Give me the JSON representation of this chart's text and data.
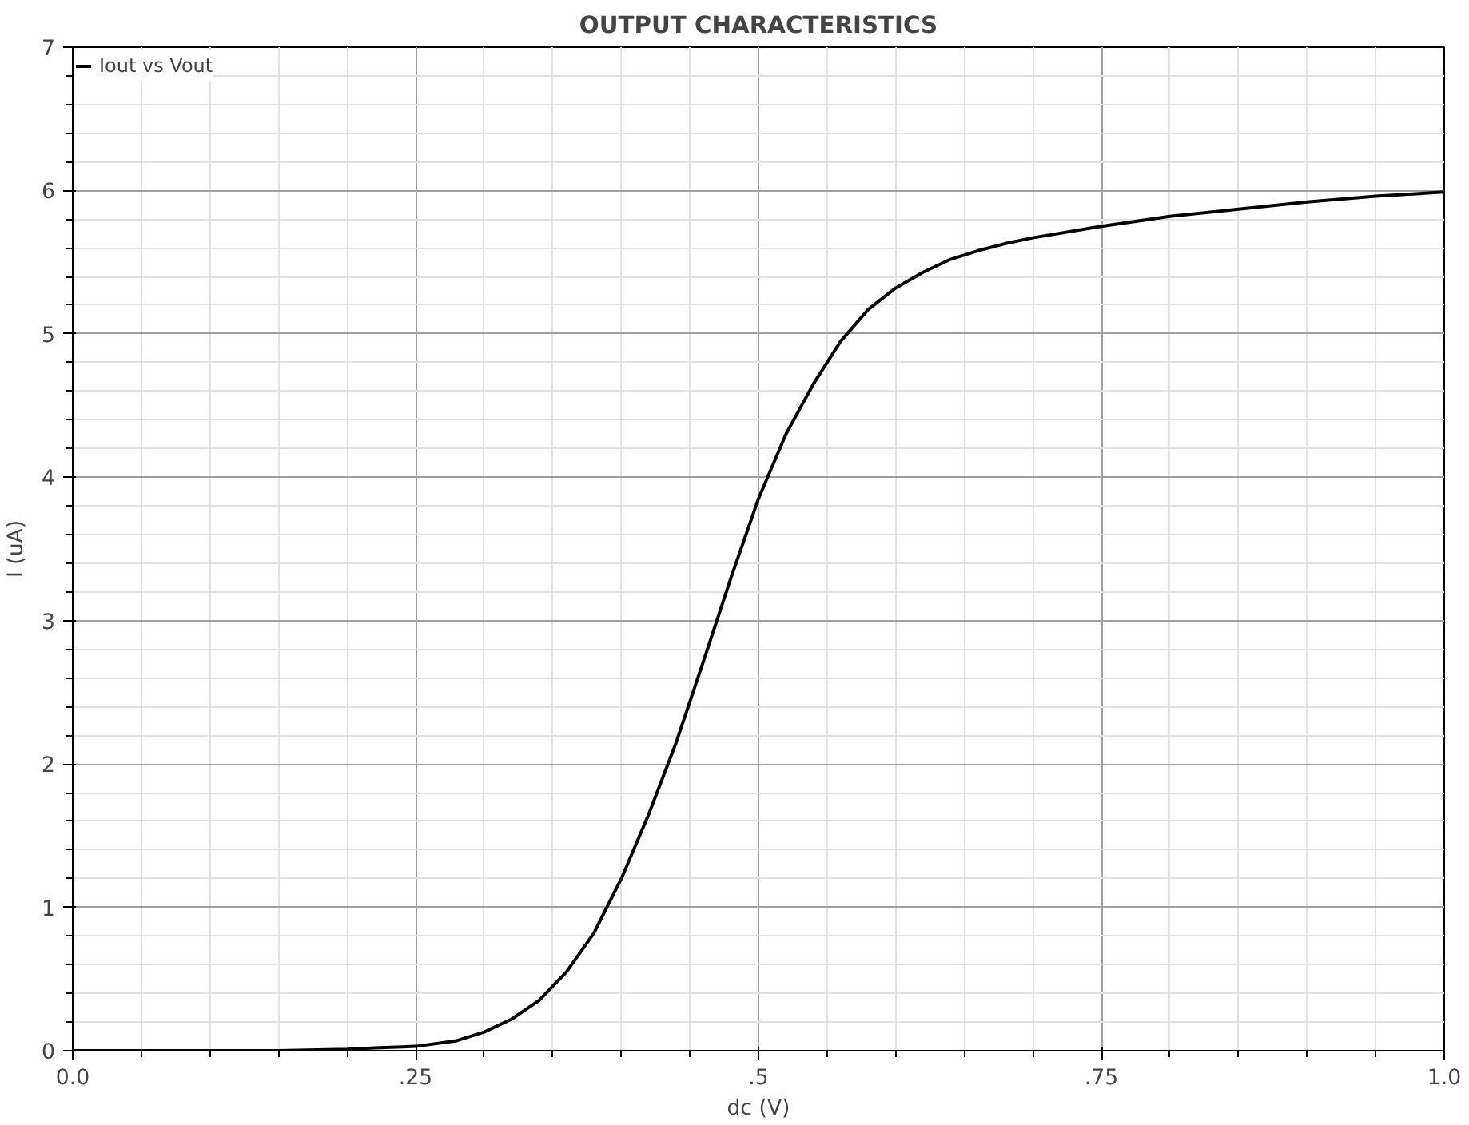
{
  "chart_data": {
    "type": "line",
    "title": "OUTPUT CHARACTERISTICS",
    "xlabel": "dc (V)",
    "ylabel": "I (uA)",
    "x": [
      0,
      0.05,
      0.1,
      0.15,
      0.2,
      0.22,
      0.25,
      0.28,
      0.3,
      0.32,
      0.34,
      0.36,
      0.38,
      0.4,
      0.42,
      0.44,
      0.46,
      0.48,
      0.5,
      0.52,
      0.54,
      0.56,
      0.58,
      0.6,
      0.62,
      0.64,
      0.66,
      0.68,
      0.7,
      0.75,
      0.8,
      0.85,
      0.9,
      0.95,
      1.0
    ],
    "series": [
      {
        "name": "Iout vs Vout",
        "color": "#000000",
        "values": [
          0,
          0,
          0,
          0,
          0.01,
          0.02,
          0.03,
          0.07,
          0.13,
          0.22,
          0.35,
          0.55,
          0.82,
          1.2,
          1.65,
          2.15,
          2.72,
          3.3,
          3.85,
          4.3,
          4.65,
          4.95,
          5.17,
          5.32,
          5.43,
          5.52,
          5.58,
          5.63,
          5.67,
          5.75,
          5.82,
          5.87,
          5.92,
          5.96,
          5.99
        ]
      }
    ],
    "xlim": [
      0,
      1
    ],
    "ylim": [
      0,
      7
    ],
    "xticks": [
      {
        "value": 0,
        "label": "0.0"
      },
      {
        "value": 0.25,
        "label": ".25"
      },
      {
        "value": 0.5,
        "label": ".5"
      },
      {
        "value": 0.75,
        "label": ".75"
      },
      {
        "value": 1,
        "label": "1.0"
      }
    ],
    "yticks": [
      0,
      1,
      2,
      3,
      4,
      5,
      6,
      7
    ],
    "grid": true,
    "legend": "top left",
    "marker": "none",
    "line_style": "solid"
  }
}
